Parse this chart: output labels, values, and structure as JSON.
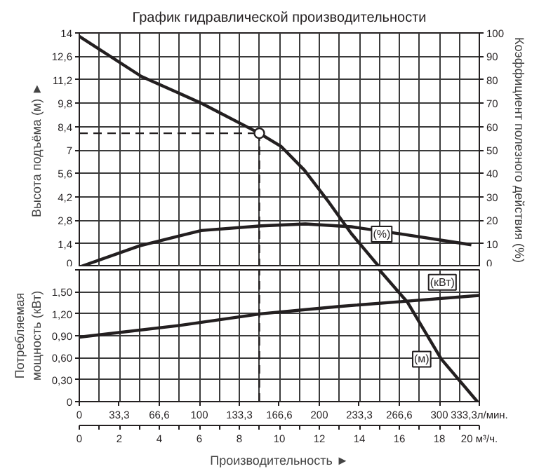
{
  "chart_data": [
    {
      "type": "line",
      "title": "График гидравлической производительности",
      "ylabel": "Высота подъёма (м) ►",
      "y2label": "Коэффициент полезного действия (%)",
      "xlim": [
        0,
        20
      ],
      "xticks": [
        0,
        1,
        2,
        3,
        4,
        5,
        6,
        7,
        8,
        9,
        10,
        11,
        12,
        13,
        14,
        15,
        16,
        17,
        18,
        19,
        20
      ],
      "ylim": [
        0,
        14
      ],
      "yticks": [
        0,
        {
          "value": 1.4,
          "label": "1,4"
        },
        {
          "value": 2.8,
          "label": "2,8"
        },
        {
          "value": 4.2,
          "label": "4,2"
        },
        {
          "value": 5.6,
          "label": "5,6"
        },
        7,
        {
          "value": 8.4,
          "label": "8,4"
        },
        {
          "value": 9.8,
          "label": "9,8"
        },
        {
          "value": 11.2,
          "label": "11,2"
        },
        {
          "value": 12.6,
          "label": "12,6"
        },
        14
      ],
      "y2lim": [
        0,
        100
      ],
      "y2ticks": [
        0,
        10,
        20,
        30,
        40,
        50,
        60,
        70,
        80,
        90,
        100
      ],
      "tick_labels": "y",
      "grid": true,
      "line_style": "solid",
      "series": [
        {
          "color": "#231f20",
          "x": [
            0,
            3.1,
            6.1,
            9,
            10.1,
            11.25,
            12.4,
            13.6,
            15
          ],
          "values": [
            13.8,
            11.4,
            9.8,
            8,
            7.2,
            5.8,
            4,
            2,
            0
          ]
        },
        {
          "name": "(%)",
          "color": "#231f20",
          "axis": "y2",
          "x": [
            0,
            3,
            6.1,
            9.1,
            11.3,
            13.6,
            16.1,
            19.6
          ],
          "values": [
            0,
            9,
            15.6,
            17.6,
            18.4,
            17.2,
            14.1,
            9.5
          ]
        },
        {
          "type": "scatter",
          "marker": "circle",
          "color": "#231f20",
          "x": [
            9
          ],
          "values": [
            8
          ]
        }
      ],
      "ref_lines": [
        {
          "axis": "y",
          "value": 8,
          "line_style": "dashed"
        },
        {
          "axis": "x",
          "value": 9,
          "line_style": "dashed"
        }
      ]
    },
    {
      "type": "line",
      "ylabel": "Потребляемая мощность (кВт)",
      "xlabel": "Производительность ►",
      "xlim": [
        0,
        20
      ],
      "xticks": [
        0,
        {
          "value": 1,
          "label": null
        },
        2,
        {
          "value": 3,
          "label": null
        },
        4,
        {
          "value": 5,
          "label": null
        },
        6,
        {
          "value": 7,
          "label": null
        },
        8,
        {
          "value": 9,
          "label": null
        },
        10,
        {
          "value": 11,
          "label": null
        },
        12,
        {
          "value": 13,
          "label": null
        },
        14,
        {
          "value": 15,
          "label": null
        },
        16,
        {
          "value": 17,
          "label": null
        },
        18,
        {
          "value": 19,
          "label": null
        },
        {
          "value": 20,
          "label": "20 м³/ч."
        }
      ],
      "x2lim": [
        0,
        333.3
      ],
      "x2ticks": [
        0,
        {
          "value": 33.3,
          "label": "33,3"
        },
        {
          "value": 66.6,
          "label": "66,6"
        },
        100,
        {
          "value": 133.3,
          "label": "133,3"
        },
        {
          "value": 166.6,
          "label": "166,6"
        },
        200,
        {
          "value": 233.3,
          "label": "233,3"
        },
        {
          "value": 266.6,
          "label": "266,6"
        },
        300,
        {
          "value": 333.3,
          "label": "333,3л/мин."
        }
      ],
      "ylim": [
        0,
        1.8
      ],
      "yticks": [
        0,
        {
          "value": 0.3,
          "label": "0,30"
        },
        {
          "value": 0.6,
          "label": "0,60"
        },
        {
          "value": 0.9,
          "label": "0,90"
        },
        {
          "value": 1.2,
          "label": "1,20"
        },
        {
          "value": 1.5,
          "label": "1,50"
        },
        {
          "value": 1.8,
          "label": null
        }
      ],
      "grid": true,
      "line_style": "solid",
      "series": [
        {
          "name": "(кВт)",
          "color": "#231f20",
          "x": [
            0,
            5,
            9.1,
            13,
            16.3,
            20
          ],
          "values": [
            0.88,
            1.04,
            1.2,
            1.3,
            1.37,
            1.45
          ]
        },
        {
          "name": "(м)",
          "color": "#231f20",
          "x": [
            15,
            16.4,
            18.1,
            19.9
          ],
          "values": [
            1.8,
            1.36,
            0.58,
            0
          ]
        }
      ],
      "ref_lines": [
        {
          "axis": "x",
          "value": 9,
          "line_style": "dashed"
        }
      ]
    }
  ]
}
